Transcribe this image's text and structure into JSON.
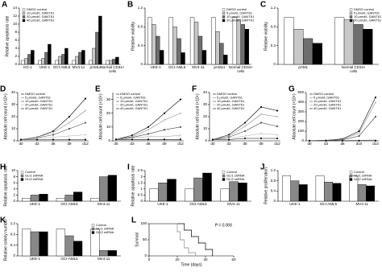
{
  "chart_data": [
    {
      "label": "A",
      "type": "bar",
      "ylabel": "Relative apoptosis rate",
      "legend": "upper left",
      "categories": [
        "KG-1",
        "UKE-1",
        "OCI-AML5",
        "MV4-11",
        "pAMLs",
        "Normal CD34+ cells"
      ],
      "ylim": [
        0,
        14
      ],
      "yticks": [
        0,
        2,
        4,
        6,
        8,
        10,
        12,
        14
      ],
      "series": [
        {
          "name": "DMSO control",
          "color": "#ffffff",
          "values": [
            1,
            1,
            1,
            1,
            1,
            1
          ]
        },
        {
          "name": "10 μmol/L GANT61",
          "color": "#c8c8c8",
          "values": [
            1.5,
            1.5,
            2,
            2,
            4,
            1
          ]
        },
        {
          "name": "20 μmol/L GANT61",
          "color": "#6e6e6e",
          "values": [
            2.5,
            3,
            2.5,
            3,
            8,
            1.3
          ]
        },
        {
          "name": "40 μmol/L GANT61",
          "color": "#000000",
          "values": [
            3.5,
            5,
            4,
            3.5,
            12,
            1.8
          ]
        }
      ]
    },
    {
      "label": "B",
      "type": "bar",
      "ylabel": "Relative viability",
      "legend": "upper right",
      "categories": [
        "UKE-1",
        "OCI-AML5",
        "MV4-11",
        "pAMLs",
        "Normal CD34+ cells"
      ],
      "ylim": [
        0,
        1.2
      ],
      "yticks": [
        0,
        0.4,
        0.8,
        1.2
      ],
      "series": [
        {
          "name": "DMSO control",
          "color": "#ffffff",
          "values": [
            1,
            1,
            1,
            1,
            1
          ]
        },
        {
          "name": "5 μmol/L GANT61",
          "color": "#c8c8c8",
          "values": [
            0.85,
            0.8,
            0.9,
            0.7,
            0.95
          ]
        },
        {
          "name": "10 μmol/L GANT61",
          "color": "#6e6e6e",
          "values": [
            0.6,
            0.55,
            0.6,
            0.45,
            0.85
          ]
        },
        {
          "name": "20 μmol/L GANT61",
          "color": "#000000",
          "values": [
            0.3,
            0.25,
            0.3,
            0.2,
            0.75
          ]
        }
      ]
    },
    {
      "label": "C",
      "type": "bar",
      "ylabel": "Relative viability",
      "legend": "upper right",
      "categories": [
        "pAML",
        "Normal CD34+ cells"
      ],
      "ylim": [
        0,
        1.2
      ],
      "yticks": [
        0,
        0.4,
        0.8,
        1.2
      ],
      "series": [
        {
          "name": "DMSO control",
          "color": "#ffffff",
          "values": [
            1,
            1
          ]
        },
        {
          "name": "5 μmol/L GANT61",
          "color": "#c8c8c8",
          "values": [
            0.75,
            0.95
          ]
        },
        {
          "name": "10 μmol/L GANT61",
          "color": "#6e6e6e",
          "values": [
            0.55,
            0.85
          ]
        },
        {
          "name": "20 μmol/L GANT61",
          "color": "#000000",
          "values": [
            0.45,
            0.75
          ]
        }
      ]
    },
    {
      "label": "D",
      "type": "line",
      "ylabel": "Absolute cell count (×10⁶)",
      "legend": "upper left",
      "categories": [
        "d0",
        "d3",
        "d6",
        "d9",
        "d12"
      ],
      "ylim": [
        0,
        40
      ],
      "yticks": [
        0,
        10,
        20,
        30,
        40
      ],
      "series": [
        {
          "name": "DMSO control",
          "color": "#000000",
          "values": [
            1,
            3,
            8,
            20,
            35
          ]
        },
        {
          "name": "5 μmol/L GANT61",
          "color": "#888888",
          "values": [
            1,
            3,
            7,
            15,
            25
          ]
        },
        {
          "name": "10 μmol/L GANT61",
          "color": "#444444",
          "values": [
            1,
            2.5,
            5,
            10,
            15
          ]
        },
        {
          "name": "20 μmol/L GANT61",
          "color": "#aaaaaa",
          "values": [
            1,
            2,
            3,
            4,
            5
          ]
        },
        {
          "name": "40 μmol/L GANT61",
          "color": "#000000",
          "values": [
            1,
            1,
            1,
            1,
            1
          ]
        }
      ]
    },
    {
      "label": "E",
      "type": "line",
      "ylabel": "Absolute cell count (×10⁶)",
      "legend": "upper left",
      "categories": [
        "d0",
        "d3",
        "d6",
        "d9",
        "d12"
      ],
      "ylim": [
        0,
        35
      ],
      "yticks": [
        0,
        10,
        20,
        30
      ],
      "series": [
        {
          "name": "DMSO control",
          "color": "#000000",
          "values": [
            1,
            4,
            10,
            20,
            30
          ]
        },
        {
          "name": "5 μmol/L GANT61",
          "color": "#888888",
          "values": [
            1,
            3,
            8,
            15,
            20
          ]
        },
        {
          "name": "10 μmol/L GANT61",
          "color": "#444444",
          "values": [
            1,
            2.5,
            5,
            8,
            10
          ]
        },
        {
          "name": "20 μmol/L GANT61",
          "color": "#aaaaaa",
          "values": [
            1,
            2,
            3,
            3,
            4
          ]
        },
        {
          "name": "40 μmol/L GANT61",
          "color": "#000000",
          "values": [
            1,
            1,
            1,
            1,
            1
          ]
        }
      ]
    },
    {
      "label": "F",
      "type": "line",
      "ylabel": "Absolute cell count (×10⁶)",
      "legend": "upper left",
      "categories": [
        "d0",
        "d3",
        "d6",
        "d9",
        "d12"
      ],
      "ylim": [
        0,
        40
      ],
      "yticks": [
        0,
        10,
        20,
        30,
        40
      ],
      "series": [
        {
          "name": "DMSO control",
          "color": "#000000",
          "values": [
            1,
            5,
            15,
            28,
            25
          ]
        },
        {
          "name": "5 μmol/L GANT61",
          "color": "#888888",
          "values": [
            1,
            4,
            12,
            22,
            20
          ]
        },
        {
          "name": "10 μmol/L GANT61",
          "color": "#444444",
          "values": [
            1,
            3,
            8,
            15,
            12
          ]
        },
        {
          "name": "20 μmol/L GANT61",
          "color": "#aaaaaa",
          "values": [
            1,
            2,
            4,
            6,
            5
          ]
        },
        {
          "name": "40 μmol/L GANT61",
          "color": "#000000",
          "values": [
            1,
            1,
            2,
            2,
            2
          ]
        }
      ]
    },
    {
      "label": "G",
      "type": "line",
      "ylabel": "Absolute cell count (×10⁶)",
      "legend": "upper left",
      "categories": [
        "d0",
        "d3",
        "d6",
        "d10",
        "d13"
      ],
      "ylim": [
        0,
        500
      ],
      "yticks": [
        0,
        100,
        200,
        300,
        400,
        500
      ],
      "series": [
        {
          "name": "DMSO control",
          "color": "#000000",
          "values": [
            1,
            5,
            20,
            100,
            450
          ]
        },
        {
          "name": "5 μmol/L GANT61",
          "color": "#888888",
          "values": [
            1,
            5,
            15,
            80,
            400
          ]
        },
        {
          "name": "10 μmol/L GANT61",
          "color": "#444444",
          "values": [
            1,
            3,
            10,
            50,
            250
          ]
        },
        {
          "name": "20 μmol/L GANT61",
          "color": "#aaaaaa",
          "values": [
            1,
            2,
            3,
            5,
            10
          ]
        },
        {
          "name": "40 μmol/L GANT61",
          "color": "#000000",
          "values": [
            1,
            1,
            1,
            1,
            1
          ]
        }
      ]
    },
    {
      "label": "H",
      "type": "bar",
      "ylabel": "Relative apoptosis rate",
      "legend": "upper left",
      "categories": [
        "UKE-1",
        "OCI-AML5",
        "MV4-11"
      ],
      "ylim": [
        0,
        10
      ],
      "yticks": [
        0,
        2,
        4,
        6,
        8,
        10
      ],
      "series": [
        {
          "name": "Control",
          "color": "#ffffff",
          "values": [
            1,
            1,
            1
          ]
        },
        {
          "name": "GLI1 shRNA",
          "color": "#888888",
          "values": [
            2,
            2,
            8
          ]
        },
        {
          "name": "GLI2 shRNA",
          "color": "#000000",
          "values": [
            2.3,
            3,
            8.5
          ]
        }
      ]
    },
    {
      "label": "I",
      "type": "bar",
      "ylabel": "Relative apoptosis rate",
      "legend": "upper right",
      "categories": [
        "UKE-1",
        "OCI-AML5",
        "MV4-11"
      ],
      "ylim": [
        0,
        2.5
      ],
      "yticks": [
        0,
        0.5,
        1,
        1.5,
        2,
        2.5
      ],
      "series": [
        {
          "name": "Control",
          "color": "#ffffff",
          "values": [
            1,
            1,
            1
          ]
        },
        {
          "name": "GLI1 shRNA",
          "color": "#888888",
          "values": [
            1.5,
            1.9,
            1.6
          ]
        },
        {
          "name": "GLI2 shRNA",
          "color": "#000000",
          "values": [
            1.8,
            2.3,
            1.5
          ]
        }
      ]
    },
    {
      "label": "J",
      "type": "bar",
      "ylabel": "Relative proliferation",
      "legend": "upper right",
      "categories": [
        "UKE-1",
        "OCI-AML5",
        "MV4-11"
      ],
      "ylim": [
        0,
        1.2
      ],
      "yticks": [
        0,
        0.4,
        0.8,
        1.2
      ],
      "series": [
        {
          "name": "Control",
          "color": "#ffffff",
          "values": [
            1,
            1,
            1
          ]
        },
        {
          "name": "GLI1 shRNA",
          "color": "#888888",
          "values": [
            0.8,
            0.75,
            0.65
          ]
        },
        {
          "name": "GLI2 shRNA",
          "color": "#000000",
          "values": [
            0.65,
            0.7,
            0.6
          ]
        }
      ]
    },
    {
      "label": "K",
      "type": "bar",
      "ylabel": "Relative colony number",
      "legend": "upper right",
      "categories": [
        "UKE-1",
        "OCI-AML5",
        "MV4-11"
      ],
      "ylim": [
        0,
        1.2
      ],
      "yticks": [
        0,
        0.4,
        0.8,
        1.2
      ],
      "series": [
        {
          "name": "Control",
          "color": "#ffffff",
          "values": [
            1,
            1,
            1
          ]
        },
        {
          "name": "GLI1 shRNA",
          "color": "#888888",
          "values": [
            0.9,
            0.75,
            0.2
          ]
        },
        {
          "name": "GLI2 shRNA",
          "color": "#000000",
          "values": [
            0.9,
            0.55,
            0.2
          ]
        }
      ]
    },
    {
      "label": "L",
      "type": "step",
      "ylabel": "Survival",
      "xlabel": "Time (days)",
      "annotation": "P = 0.006",
      "xlim": [
        0,
        60
      ],
      "xticks": [
        0,
        20,
        40,
        60
      ],
      "ylim": [
        0,
        100
      ],
      "yticks": [
        0,
        50,
        100
      ],
      "series": [
        {
          "color": "#000000",
          "x": [
            0,
            25,
            30,
            35,
            40,
            45
          ],
          "values": [
            100,
            80,
            60,
            40,
            20,
            0
          ]
        },
        {
          "color": "#888888",
          "x": [
            0,
            20,
            22,
            25,
            28,
            33
          ],
          "values": [
            100,
            75,
            50,
            25,
            10,
            0
          ]
        }
      ]
    }
  ]
}
